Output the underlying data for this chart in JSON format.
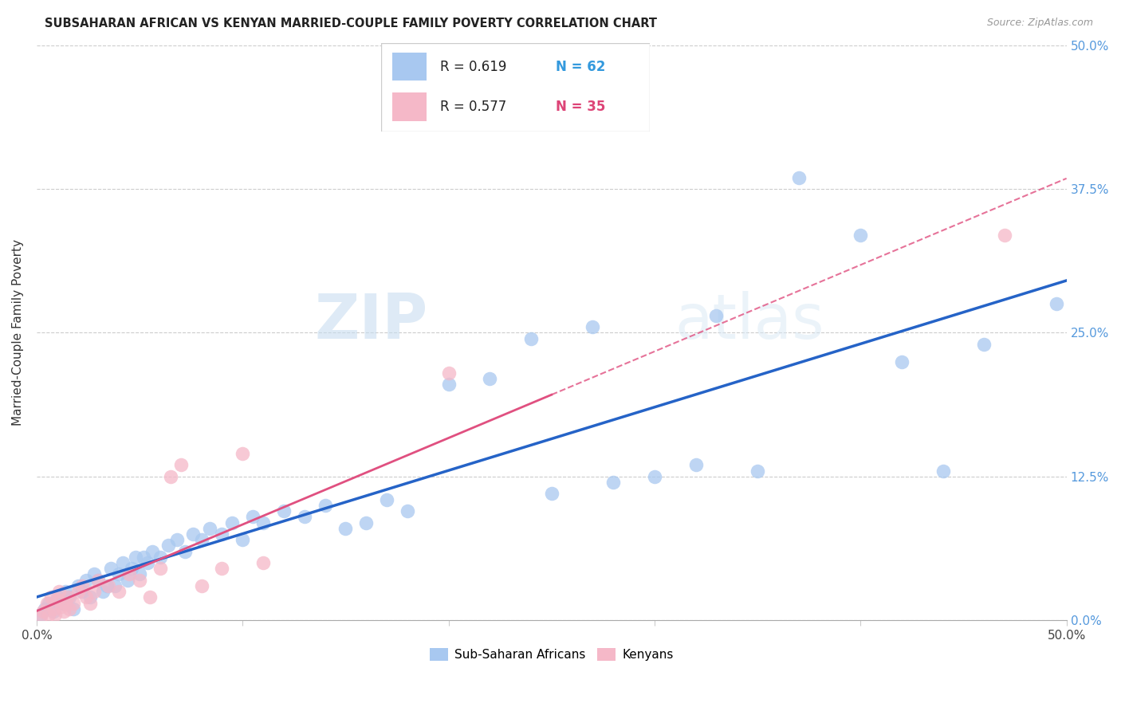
{
  "title": "SUBSAHARAN AFRICAN VS KENYAN MARRIED-COUPLE FAMILY POVERTY CORRELATION CHART",
  "source": "Source: ZipAtlas.com",
  "ylabel": "Married-Couple Family Poverty",
  "ytick_labels": [
    "0.0%",
    "12.5%",
    "25.0%",
    "37.5%",
    "50.0%"
  ],
  "ytick_values": [
    0.0,
    12.5,
    25.0,
    37.5,
    50.0
  ],
  "xlim": [
    0.0,
    50.0
  ],
  "ylim": [
    0.0,
    50.0
  ],
  "blue_color": "#a8c8f0",
  "pink_color": "#f5b8c8",
  "blue_line_color": "#2563c7",
  "pink_line_color": "#e05080",
  "watermark_zip": "ZIP",
  "watermark_atlas": "atlas",
  "blue_scatter": [
    [
      0.2,
      0.5
    ],
    [
      0.4,
      1.0
    ],
    [
      0.6,
      1.5
    ],
    [
      0.8,
      0.8
    ],
    [
      1.0,
      2.0
    ],
    [
      1.2,
      1.5
    ],
    [
      1.4,
      2.5
    ],
    [
      1.6,
      2.0
    ],
    [
      1.8,
      1.0
    ],
    [
      2.0,
      3.0
    ],
    [
      2.2,
      2.5
    ],
    [
      2.4,
      3.5
    ],
    [
      2.6,
      2.0
    ],
    [
      2.8,
      4.0
    ],
    [
      3.0,
      3.5
    ],
    [
      3.2,
      2.5
    ],
    [
      3.4,
      3.0
    ],
    [
      3.6,
      4.5
    ],
    [
      3.8,
      3.0
    ],
    [
      4.0,
      4.0
    ],
    [
      4.2,
      5.0
    ],
    [
      4.4,
      3.5
    ],
    [
      4.6,
      4.5
    ],
    [
      4.8,
      5.5
    ],
    [
      5.0,
      4.0
    ],
    [
      5.2,
      5.5
    ],
    [
      5.4,
      5.0
    ],
    [
      5.6,
      6.0
    ],
    [
      6.0,
      5.5
    ],
    [
      6.4,
      6.5
    ],
    [
      6.8,
      7.0
    ],
    [
      7.2,
      6.0
    ],
    [
      7.6,
      7.5
    ],
    [
      8.0,
      7.0
    ],
    [
      8.4,
      8.0
    ],
    [
      9.0,
      7.5
    ],
    [
      9.5,
      8.5
    ],
    [
      10.0,
      7.0
    ],
    [
      10.5,
      9.0
    ],
    [
      11.0,
      8.5
    ],
    [
      12.0,
      9.5
    ],
    [
      13.0,
      9.0
    ],
    [
      14.0,
      10.0
    ],
    [
      15.0,
      8.0
    ],
    [
      16.0,
      8.5
    ],
    [
      17.0,
      10.5
    ],
    [
      18.0,
      9.5
    ],
    [
      20.0,
      20.5
    ],
    [
      22.0,
      21.0
    ],
    [
      24.0,
      24.5
    ],
    [
      25.0,
      11.0
    ],
    [
      27.0,
      25.5
    ],
    [
      28.0,
      12.0
    ],
    [
      30.0,
      12.5
    ],
    [
      32.0,
      13.5
    ],
    [
      33.0,
      26.5
    ],
    [
      35.0,
      13.0
    ],
    [
      37.0,
      38.5
    ],
    [
      40.0,
      33.5
    ],
    [
      42.0,
      22.5
    ],
    [
      44.0,
      13.0
    ],
    [
      46.0,
      24.0
    ],
    [
      49.5,
      27.5
    ]
  ],
  "pink_scatter": [
    [
      0.2,
      0.3
    ],
    [
      0.3,
      0.8
    ],
    [
      0.5,
      1.5
    ],
    [
      0.6,
      0.5
    ],
    [
      0.7,
      2.0
    ],
    [
      0.8,
      1.0
    ],
    [
      0.9,
      0.5
    ],
    [
      1.0,
      1.8
    ],
    [
      1.1,
      2.5
    ],
    [
      1.2,
      1.2
    ],
    [
      1.3,
      0.8
    ],
    [
      1.4,
      1.5
    ],
    [
      1.5,
      2.0
    ],
    [
      1.6,
      1.0
    ],
    [
      1.8,
      1.5
    ],
    [
      2.0,
      2.5
    ],
    [
      2.2,
      3.0
    ],
    [
      2.4,
      2.0
    ],
    [
      2.6,
      1.5
    ],
    [
      2.8,
      2.5
    ],
    [
      3.0,
      3.5
    ],
    [
      3.5,
      3.0
    ],
    [
      4.0,
      2.5
    ],
    [
      4.5,
      4.0
    ],
    [
      5.0,
      3.5
    ],
    [
      5.5,
      2.0
    ],
    [
      6.0,
      4.5
    ],
    [
      6.5,
      12.5
    ],
    [
      7.0,
      13.5
    ],
    [
      8.0,
      3.0
    ],
    [
      9.0,
      4.5
    ],
    [
      10.0,
      14.5
    ],
    [
      11.0,
      5.0
    ],
    [
      20.0,
      21.5
    ],
    [
      47.0,
      33.5
    ]
  ]
}
